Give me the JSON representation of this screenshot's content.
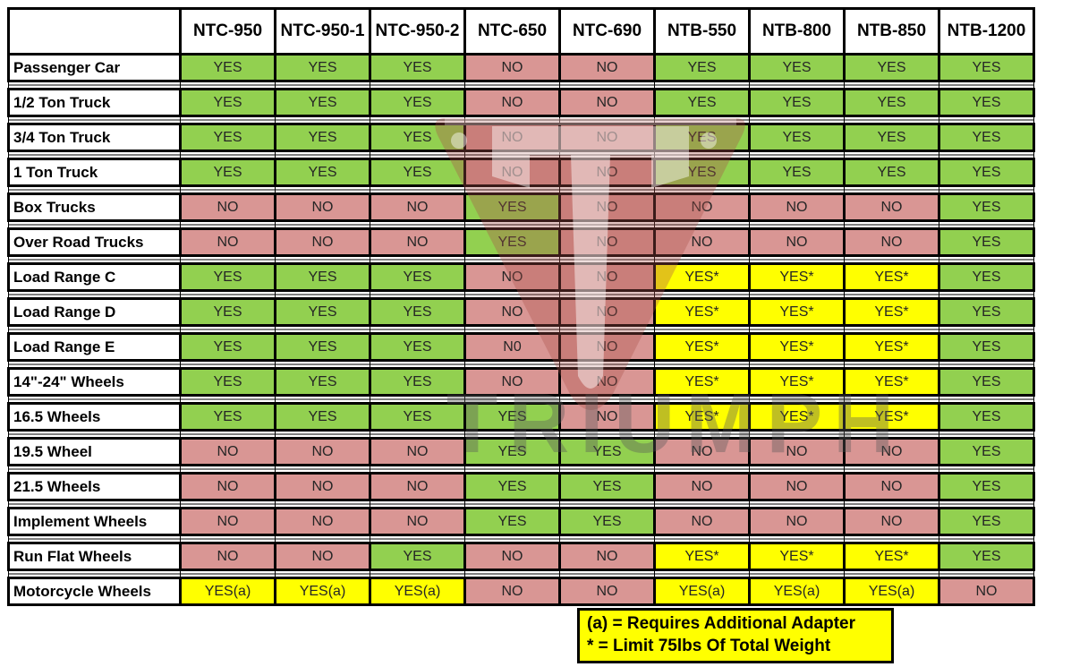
{
  "chart_data": {
    "type": "table",
    "title": "Tire changer model compatibility matrix",
    "columns": [
      "NTC-950",
      "NTC-950-1",
      "NTC-950-2",
      "NTC-650",
      "NTC-690",
      "NTB-550",
      "NTB-800",
      "NTB-850",
      "NTB-1200"
    ],
    "rows": [
      {
        "label": "Passenger Car",
        "values": [
          "YES",
          "YES",
          "YES",
          "NO",
          "NO",
          "YES",
          "YES",
          "YES",
          "YES"
        ]
      },
      {
        "label": "1/2 Ton Truck",
        "values": [
          "YES",
          "YES",
          "YES",
          "NO",
          "NO",
          "YES",
          "YES",
          "YES",
          "YES"
        ]
      },
      {
        "label": "3/4 Ton Truck",
        "values": [
          "YES",
          "YES",
          "YES",
          "NO",
          "NO",
          "YES",
          "YES",
          "YES",
          "YES"
        ]
      },
      {
        "label": "1 Ton Truck",
        "values": [
          "YES",
          "YES",
          "YES",
          "NO",
          "NO",
          "YES",
          "YES",
          "YES",
          "YES"
        ]
      },
      {
        "label": "Box Trucks",
        "values": [
          "NO",
          "NO",
          "NO",
          "YES",
          "NO",
          "NO",
          "NO",
          "NO",
          "YES"
        ]
      },
      {
        "label": "Over Road Trucks",
        "values": [
          "NO",
          "NO",
          "NO",
          "YES",
          "NO",
          "NO",
          "NO",
          "NO",
          "YES"
        ]
      },
      {
        "label": "Load Range C",
        "values": [
          "YES",
          "YES",
          "YES",
          "NO",
          "NO",
          "YES*",
          "YES*",
          "YES*",
          "YES"
        ]
      },
      {
        "label": "Load Range D",
        "values": [
          "YES",
          "YES",
          "YES",
          "NO",
          "NO",
          "YES*",
          "YES*",
          "YES*",
          "YES"
        ]
      },
      {
        "label": "Load Range E",
        "values": [
          "YES",
          "YES",
          "YES",
          "N0",
          "NO",
          "YES*",
          "YES*",
          "YES*",
          "YES"
        ]
      },
      {
        "label": "14\"-24\" Wheels",
        "values": [
          "YES",
          "YES",
          "YES",
          "NO",
          "NO",
          "YES*",
          "YES*",
          "YES*",
          "YES"
        ]
      },
      {
        "label": "16.5 Wheels",
        "values": [
          "YES",
          "YES",
          "YES",
          "YES",
          "NO",
          "YES*",
          "YES*",
          "YES*",
          "YES"
        ]
      },
      {
        "label": "19.5 Wheel",
        "values": [
          "NO",
          "NO",
          "NO",
          "YES",
          "YES",
          "NO",
          "NO",
          "NO",
          "YES"
        ]
      },
      {
        "label": "21.5 Wheels",
        "values": [
          "NO",
          "NO",
          "NO",
          "YES",
          "YES",
          "NO",
          "NO",
          "NO",
          "YES"
        ]
      },
      {
        "label": "Implement Wheels",
        "values": [
          "NO",
          "NO",
          "NO",
          "YES",
          "YES",
          "NO",
          "NO",
          "NO",
          "YES"
        ]
      },
      {
        "label": "Run Flat Wheels",
        "values": [
          "NO",
          "NO",
          "YES",
          "NO",
          "NO",
          "YES*",
          "YES*",
          "YES*",
          "YES"
        ]
      },
      {
        "label": "Motorcycle Wheels",
        "values": [
          "YES(a)",
          "YES(a)",
          "YES(a)",
          "NO",
          "NO",
          "YES(a)",
          "YES(a)",
          "YES(a)",
          "NO"
        ]
      }
    ],
    "legend_notes": [
      "(a) = Requires Additional Adapter",
      "* = Limit 75lbs Of Total Weight"
    ],
    "layout_hints": {
      "grid": true,
      "cell_color_coding": {
        "YES": "green",
        "NO": "red",
        "YES* / YES(a)": "yellow"
      }
    }
  },
  "legend": {
    "line1": "(a) = Requires Additional Adapter",
    "line2": "* = Limit 75lbs Of Total Weight"
  },
  "watermark": {
    "text": "TRIUMPH"
  },
  "colors": {
    "yes_green": "#92D050",
    "no_red": "#D99694",
    "conditional_yellow": "#FFFF00",
    "border_black": "#000000",
    "watermark_red": "#A94F4A"
  }
}
